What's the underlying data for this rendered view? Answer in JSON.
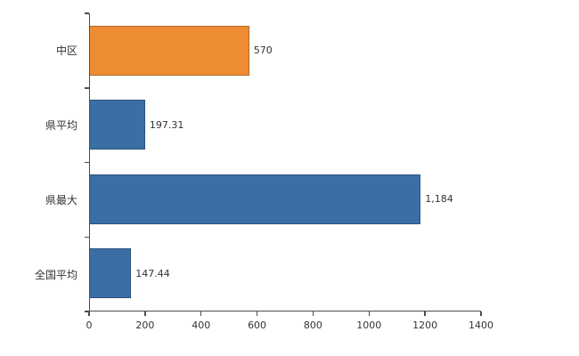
{
  "chart_data": {
    "type": "bar",
    "orientation": "horizontal",
    "title": "",
    "xlabel": "",
    "ylabel": "",
    "categories": [
      "中区",
      "県平均",
      "県最大",
      "全国平均"
    ],
    "values": [
      570,
      197.31,
      1184,
      147.44
    ],
    "value_labels": [
      "570",
      "197.31",
      "1,184",
      "147.44"
    ],
    "bar_colors": [
      "#ED8C32",
      "#3A6EA5",
      "#3A6EA5",
      "#3A6EA5"
    ],
    "xlim": [
      0,
      1400
    ],
    "x_ticks": [
      0,
      200,
      400,
      600,
      800,
      1000,
      1200,
      1400
    ],
    "grid": false,
    "legend": false
  },
  "colors": {
    "highlight_bar": "#ED8C32",
    "default_bar": "#3A6EA5",
    "axis": "#4d4d4d",
    "text": "#333333",
    "background": "#ffffff"
  }
}
